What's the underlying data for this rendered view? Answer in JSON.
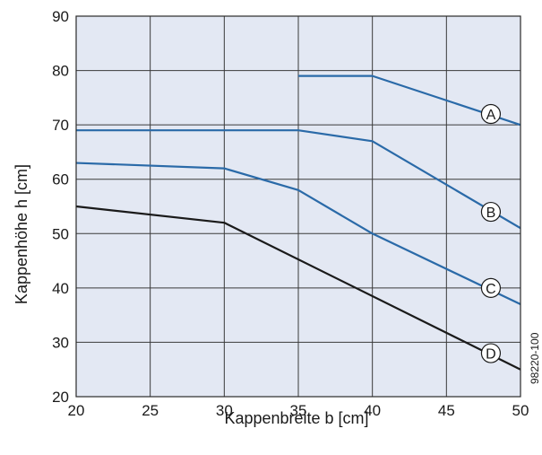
{
  "chart_data": {
    "type": "line",
    "xlabel": "Kappenbreite b [cm]",
    "ylabel": "Kappenhöhe h [cm]",
    "xlim": [
      20,
      50
    ],
    "ylim": [
      20,
      90
    ],
    "xticks": [
      20,
      25,
      30,
      35,
      40,
      45,
      50
    ],
    "yticks": [
      20,
      30,
      40,
      50,
      60,
      70,
      80,
      90
    ],
    "grid": true,
    "figure_code": "98220-100",
    "series": [
      {
        "name": "A",
        "color": "#2a6aa8",
        "x": [
          35,
          40,
          50
        ],
        "y": [
          79,
          79,
          70
        ],
        "label_pos": [
          48,
          72
        ]
      },
      {
        "name": "B",
        "color": "#2a6aa8",
        "x": [
          20,
          35,
          40,
          50
        ],
        "y": [
          69,
          69,
          67,
          51
        ],
        "label_pos": [
          48,
          54
        ]
      },
      {
        "name": "C",
        "color": "#2a6aa8",
        "x": [
          20,
          30,
          35,
          40,
          50
        ],
        "y": [
          63,
          62,
          58,
          50,
          37
        ],
        "label_pos": [
          48,
          40
        ]
      },
      {
        "name": "D",
        "color": "#1a1a1a",
        "x": [
          20,
          30,
          50
        ],
        "y": [
          55,
          52,
          25
        ],
        "label_pos": [
          48,
          28
        ]
      }
    ],
    "plot_background": "#e3e8f3",
    "grid_color": "#3a3a3a"
  }
}
